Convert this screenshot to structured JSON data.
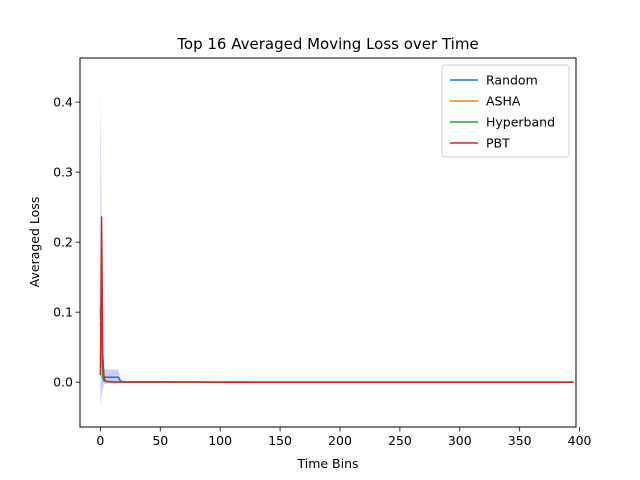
{
  "chart_data": {
    "type": "line",
    "title": "Top 16 Averaged Moving Loss over Time",
    "xlabel": "Time Bins",
    "ylabel": "Averaged Loss",
    "xlim": [
      -17,
      397
    ],
    "ylim": [
      -0.064,
      0.463
    ],
    "xticks": [
      0,
      50,
      100,
      150,
      200,
      250,
      300,
      350,
      400
    ],
    "yticks": [
      0.0,
      0.1,
      0.2,
      0.3,
      0.4
    ],
    "ytick_labels": [
      "0.0",
      "0.1",
      "0.2",
      "0.3",
      "0.4"
    ],
    "grid": false,
    "legend_position": "top-right",
    "series": [
      {
        "name": "Random",
        "color": "#1f77b4",
        "x": [
          0,
          1,
          2,
          3,
          5,
          10,
          15,
          17,
          20,
          30,
          40,
          50,
          63
        ],
        "y": [
          0.105,
          0.06,
          0.015,
          0.008,
          0.007,
          0.007,
          0.007,
          0.001,
          0.0005,
          0.0005,
          0.0003,
          0.0002,
          0.0002
        ],
        "band_upper": [
          0.42,
          0.25,
          0.04,
          0.018,
          0.018,
          0.018,
          0.018,
          0.004,
          0.002,
          0.001,
          0.001,
          0.001,
          0.001
        ],
        "band_lower": [
          -0.035,
          -0.02,
          -0.01,
          -0.003,
          -0.002,
          -0.002,
          -0.002,
          -0.001,
          0.0,
          0.0,
          0.0,
          0.0,
          0.0
        ],
        "band_color": "#0000ff"
      },
      {
        "name": "ASHA",
        "color": "#ff7f0e",
        "x": [
          0,
          1,
          2,
          3,
          5,
          10,
          20,
          395
        ],
        "y": [
          0.08,
          0.1,
          0.008,
          0.003,
          0.001,
          0.0005,
          0.0002,
          0.0001
        ]
      },
      {
        "name": "Hyperband",
        "color": "#2ca02c",
        "x": [
          0,
          1,
          2,
          3,
          5,
          10,
          20,
          395
        ],
        "y": [
          0.09,
          0.1,
          0.006,
          0.002,
          0.001,
          0.0005,
          0.0002,
          0.0001
        ]
      },
      {
        "name": "PBT",
        "color": "#d62728",
        "x": [
          0,
          1,
          2,
          3,
          4,
          6,
          10,
          20,
          395
        ],
        "y": [
          0.01,
          0.236,
          0.04,
          0.008,
          0.002,
          0.001,
          0.0005,
          0.0002,
          0.0001
        ]
      }
    ]
  }
}
